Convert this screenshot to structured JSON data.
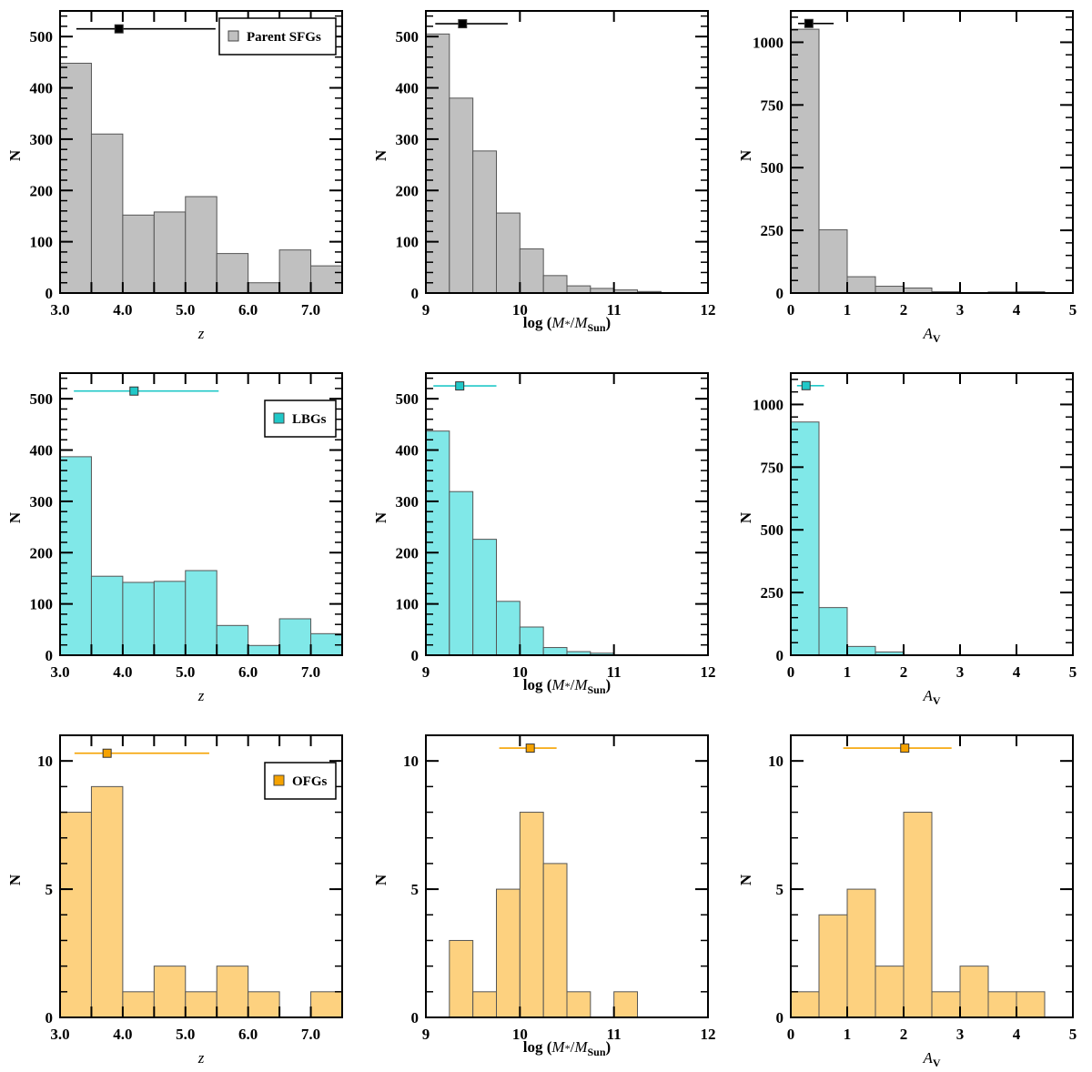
{
  "figure": {
    "colors": {
      "parent": {
        "fill": "#c0c0c0",
        "marker": "#000000",
        "line": "#000000"
      },
      "lbg": {
        "fill": "#80e8e8",
        "marker": "#20c8c8",
        "line": "#20c8c8"
      },
      "ofg": {
        "fill": "#fdd17f",
        "marker": "#f5a200",
        "line": "#f5a200"
      }
    }
  },
  "chart_data": [
    {
      "type": "bar",
      "panel": "parent-z",
      "sample": "parent",
      "title": "",
      "xlabel": "z",
      "ylabel": "N",
      "legend": "Parent SFGs",
      "legend_position": "top-right",
      "bin_edges": [
        3.0,
        3.5,
        4.0,
        4.5,
        5.0,
        5.5,
        6.0,
        6.5,
        7.0,
        7.5
      ],
      "values": [
        448,
        310,
        152,
        158,
        188,
        77,
        20,
        84,
        53
      ],
      "xlim": [
        3.0,
        7.5
      ],
      "ylim": [
        0,
        550
      ],
      "xticks": [
        3.0,
        4.0,
        5.0,
        6.0,
        7.0
      ],
      "xtick_labels": [
        "3.0",
        "4.0",
        "5.0",
        "6.0",
        "7.0"
      ],
      "xminor": 0.5,
      "yticks": [
        0,
        100,
        200,
        300,
        400,
        500
      ],
      "ytick_labels": [
        "0",
        "100",
        "200",
        "300",
        "400",
        "500"
      ],
      "yminor": 20,
      "median": {
        "x": 3.94,
        "y": 515,
        "xerr_low": 3.26,
        "xerr_high": 5.48
      }
    },
    {
      "type": "bar",
      "panel": "parent-mass",
      "sample": "parent",
      "title": "",
      "xlabel": "log (M*/MSun)",
      "ylabel": "N",
      "bin_edges": [
        9.0,
        9.25,
        9.5,
        9.75,
        10.0,
        10.25,
        10.5,
        10.75,
        11.0,
        11.25,
        11.5,
        11.75
      ],
      "values": [
        505,
        380,
        277,
        156,
        86,
        34,
        14,
        9,
        6,
        3,
        1
      ],
      "xlim": [
        9,
        12
      ],
      "ylim": [
        0,
        550
      ],
      "xticks": [
        9,
        10,
        11,
        12
      ],
      "xtick_labels": [
        "9",
        "10",
        "11",
        "12"
      ],
      "xminor": 1,
      "yticks": [
        0,
        100,
        200,
        300,
        400,
        500
      ],
      "ytick_labels": [
        "0",
        "100",
        "200",
        "300",
        "400",
        "500"
      ],
      "yminor": 20,
      "median": {
        "x": 9.39,
        "y": 525,
        "xerr_low": 9.1,
        "xerr_high": 9.87
      }
    },
    {
      "type": "bar",
      "panel": "parent-av",
      "sample": "parent",
      "title": "",
      "xlabel": "AV",
      "ylabel": "N",
      "bin_edges": [
        0,
        0.5,
        1.0,
        1.5,
        2.0,
        2.5,
        3.0,
        3.5,
        4.0,
        4.5
      ],
      "values": [
        1052,
        252,
        65,
        27,
        20,
        5,
        2,
        4,
        5
      ],
      "xlim": [
        0,
        5
      ],
      "ylim": [
        0,
        1125
      ],
      "xticks": [
        0,
        1,
        2,
        3,
        4,
        5
      ],
      "xtick_labels": [
        "0",
        "1",
        "2",
        "3",
        "4",
        "5"
      ],
      "xminor": 1,
      "yticks": [
        0,
        250,
        500,
        750,
        1000
      ],
      "ytick_labels": [
        "0",
        "250",
        "500",
        "750",
        "1000"
      ],
      "yminor": 50,
      "median": {
        "x": 0.32,
        "y": 1075,
        "xerr_low": 0.13,
        "xerr_high": 0.76
      }
    },
    {
      "type": "bar",
      "panel": "lbg-z",
      "sample": "lbg",
      "title": "",
      "xlabel": "z",
      "ylabel": "N",
      "legend": "LBGs",
      "legend_position": "top-right",
      "bin_edges": [
        3.0,
        3.5,
        4.0,
        4.5,
        5.0,
        5.5,
        6.0,
        6.5,
        7.0,
        7.5
      ],
      "values": [
        387,
        154,
        142,
        144,
        165,
        58,
        19,
        71,
        42
      ],
      "xlim": [
        3.0,
        7.5
      ],
      "ylim": [
        0,
        550
      ],
      "xticks": [
        3.0,
        4.0,
        5.0,
        6.0,
        7.0
      ],
      "xtick_labels": [
        "3.0",
        "4.0",
        "5.0",
        "6.0",
        "7.0"
      ],
      "xminor": 0.5,
      "yticks": [
        0,
        100,
        200,
        300,
        400,
        500
      ],
      "ytick_labels": [
        "0",
        "100",
        "200",
        "300",
        "400",
        "500"
      ],
      "yminor": 20,
      "median": {
        "x": 4.18,
        "y": 515,
        "xerr_low": 3.22,
        "xerr_high": 5.53
      }
    },
    {
      "type": "bar",
      "panel": "lbg-mass",
      "sample": "lbg",
      "title": "",
      "xlabel": "log (M*/MSun)",
      "ylabel": "N",
      "bin_edges": [
        9.0,
        9.25,
        9.5,
        9.75,
        10.0,
        10.25,
        10.5,
        10.75,
        11.0,
        11.25,
        11.5,
        11.75
      ],
      "values": [
        437,
        319,
        226,
        105,
        55,
        15,
        7,
        4,
        1,
        0,
        1
      ],
      "xlim": [
        9,
        12
      ],
      "ylim": [
        0,
        550
      ],
      "xticks": [
        9,
        10,
        11,
        12
      ],
      "xtick_labels": [
        "9",
        "10",
        "11",
        "12"
      ],
      "xminor": 1,
      "yticks": [
        0,
        100,
        200,
        300,
        400,
        500
      ],
      "ytick_labels": [
        "0",
        "100",
        "200",
        "300",
        "400",
        "500"
      ],
      "yminor": 20,
      "median": {
        "x": 9.36,
        "y": 525,
        "xerr_low": 9.08,
        "xerr_high": 9.75
      }
    },
    {
      "type": "bar",
      "panel": "lbg-av",
      "sample": "lbg",
      "title": "",
      "xlabel": "AV",
      "ylabel": "N",
      "bin_edges": [
        0,
        0.5,
        1.0,
        1.5,
        2.0
      ],
      "values": [
        930,
        190,
        35,
        13
      ],
      "xlim": [
        0,
        5
      ],
      "ylim": [
        0,
        1125
      ],
      "xticks": [
        0,
        1,
        2,
        3,
        4,
        5
      ],
      "xtick_labels": [
        "0",
        "1",
        "2",
        "3",
        "4",
        "5"
      ],
      "xminor": 1,
      "yticks": [
        0,
        250,
        500,
        750,
        1000
      ],
      "ytick_labels": [
        "0",
        "250",
        "500",
        "750",
        "1000"
      ],
      "yminor": 50,
      "median": {
        "x": 0.27,
        "y": 1075,
        "xerr_low": 0.11,
        "xerr_high": 0.59
      }
    },
    {
      "type": "bar",
      "panel": "ofg-z",
      "sample": "ofg",
      "title": "",
      "xlabel": "z",
      "ylabel": "N",
      "legend": "OFGs",
      "legend_position": "top-right",
      "bin_edges": [
        3.0,
        3.5,
        4.0,
        4.5,
        5.0,
        5.5,
        6.0,
        6.5,
        7.0,
        7.5
      ],
      "values": [
        8,
        9,
        1,
        2,
        1,
        2,
        1,
        0,
        1
      ],
      "xlim": [
        3.0,
        7.5
      ],
      "ylim": [
        0,
        11
      ],
      "xticks": [
        3.0,
        4.0,
        5.0,
        6.0,
        7.0
      ],
      "xtick_labels": [
        "3.0",
        "4.0",
        "5.0",
        "6.0",
        "7.0"
      ],
      "xminor": 0.5,
      "yticks": [
        0,
        5,
        10
      ],
      "ytick_labels": [
        "0",
        "5",
        "10"
      ],
      "yminor": 1,
      "median": {
        "x": 3.75,
        "y": 10.3,
        "xerr_low": 3.23,
        "xerr_high": 5.38
      }
    },
    {
      "type": "bar",
      "panel": "ofg-mass",
      "sample": "ofg",
      "title": "",
      "xlabel": "log (M*/MSun)",
      "ylabel": "N",
      "bin_edges": [
        9.0,
        9.25,
        9.5,
        9.75,
        10.0,
        10.25,
        10.5,
        10.75,
        11.0,
        11.25
      ],
      "values": [
        0,
        3,
        1,
        5,
        8,
        6,
        1,
        0,
        1
      ],
      "xlim": [
        9,
        12
      ],
      "ylim": [
        0,
        11
      ],
      "xticks": [
        9,
        10,
        11,
        12
      ],
      "xtick_labels": [
        "9",
        "10",
        "11",
        "12"
      ],
      "xminor": 1,
      "yticks": [
        0,
        5,
        10
      ],
      "ytick_labels": [
        "0",
        "5",
        "10"
      ],
      "yminor": 1,
      "median": {
        "x": 10.11,
        "y": 10.5,
        "xerr_low": 9.78,
        "xerr_high": 10.39
      }
    },
    {
      "type": "bar",
      "panel": "ofg-av",
      "sample": "ofg",
      "title": "",
      "xlabel": "AV",
      "ylabel": "N",
      "bin_edges": [
        0,
        0.5,
        1.0,
        1.5,
        2.0,
        2.5,
        3.0,
        3.5,
        4.0,
        4.5
      ],
      "values": [
        1,
        4,
        5,
        2,
        8,
        1,
        2,
        1,
        1
      ],
      "xlim": [
        0,
        5
      ],
      "ylim": [
        0,
        11
      ],
      "xticks": [
        0,
        1,
        2,
        3,
        4,
        5
      ],
      "xtick_labels": [
        "0",
        "1",
        "2",
        "3",
        "4",
        "5"
      ],
      "xminor": 1,
      "yticks": [
        0,
        5,
        10
      ],
      "ytick_labels": [
        "0",
        "5",
        "10"
      ],
      "yminor": 1,
      "median": {
        "x": 2.02,
        "y": 10.5,
        "xerr_low": 0.93,
        "xerr_high": 2.85
      }
    }
  ]
}
